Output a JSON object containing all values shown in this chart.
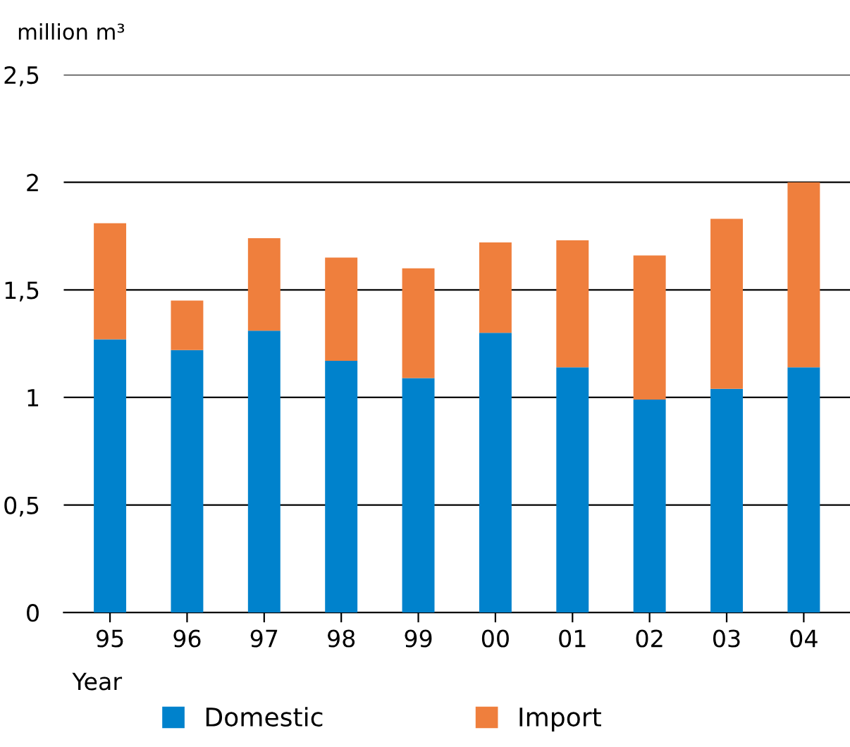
{
  "chart_data": {
    "type": "bar",
    "stacked": true,
    "ylabel": "million m³",
    "xlabel": "Year",
    "categories": [
      "95",
      "96",
      "97",
      "98",
      "99",
      "00",
      "01",
      "02",
      "03",
      "04"
    ],
    "series": [
      {
        "name": "Domestic",
        "color": "#0082cc",
        "values": [
          1.27,
          1.22,
          1.31,
          1.17,
          1.09,
          1.3,
          1.14,
          0.99,
          1.04,
          1.14
        ]
      },
      {
        "name": "Import",
        "color": "#ef7f3d",
        "values": [
          0.54,
          0.23,
          0.43,
          0.48,
          0.51,
          0.42,
          0.59,
          0.67,
          0.79,
          0.86
        ]
      }
    ],
    "ylim": [
      0,
      2.5
    ],
    "yticks": [
      0,
      {
        "value": 0.5,
        "label": "0,5"
      },
      1,
      {
        "value": 1.5,
        "label": "1,5"
      },
      2,
      {
        "value": 2.5,
        "label": "2,5"
      }
    ],
    "grid": "y",
    "legend": "bottom"
  }
}
